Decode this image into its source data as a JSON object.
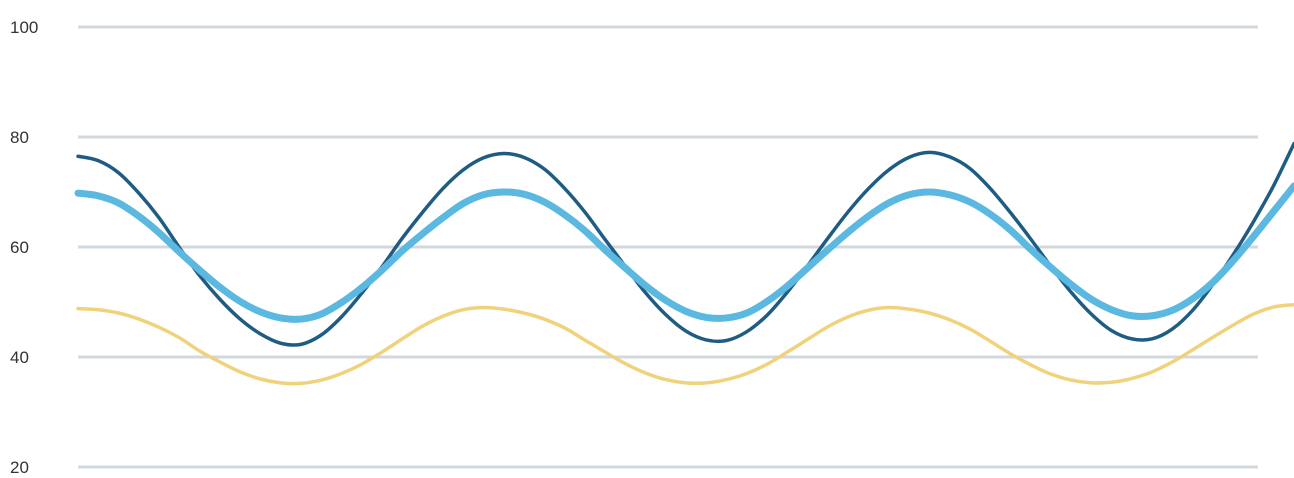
{
  "chart_data": {
    "type": "line",
    "title": "",
    "xlabel": "",
    "ylabel": "",
    "ylim": [
      20,
      100
    ],
    "xlim": [
      0,
      30
    ],
    "yticks": [
      20,
      40,
      60,
      80,
      100
    ],
    "grid": true,
    "legend": "none",
    "x": [
      0,
      0.5,
      1,
      1.5,
      2,
      2.5,
      3,
      3.5,
      4,
      4.5,
      5,
      5.5,
      6,
      6.5,
      7,
      7.5,
      8,
      8.5,
      9,
      9.5,
      10,
      10.5,
      11,
      11.5,
      12,
      12.5,
      13,
      13.5,
      14,
      14.5,
      15,
      15.5,
      16,
      16.5,
      17,
      17.5,
      18,
      18.5,
      19,
      19.5,
      20,
      20.5,
      21,
      21.5,
      22,
      22.5,
      23,
      23.5,
      24,
      24.5,
      25,
      25.5,
      26,
      26.5,
      27,
      27.5,
      28,
      28.5,
      29,
      29.5,
      30
    ],
    "series": [
      {
        "color": "#1f5c84",
        "values": [
          76.5,
          75.7,
          73.5,
          69.8,
          65.3,
          59.9,
          54.8,
          50.5,
          46.9,
          44.2,
          42.5,
          42.3,
          44,
          47.3,
          51.6,
          56.4,
          61.6,
          66.3,
          70.6,
          74,
          76.2,
          77,
          76.3,
          74.2,
          70.7,
          66.4,
          61.4,
          56.5,
          51.7,
          47.7,
          44.7,
          43.1,
          43,
          44.6,
          47.6,
          51.8,
          56.6,
          61.6,
          66.4,
          70.6,
          74,
          76.3,
          77.2,
          76.4,
          74.3,
          70.7,
          66.3,
          61.5,
          56.5,
          51.8,
          47.8,
          44.8,
          43.3,
          43.3,
          45.1,
          48.5,
          53.2,
          58.6,
          64.6,
          71.2,
          78.8
        ]
      },
      {
        "color": "#5bb8e0",
        "values": [
          69.8,
          69.3,
          68,
          65.6,
          62.6,
          59.1,
          55.8,
          52.7,
          50.1,
          48.2,
          47.1,
          46.9,
          47.8,
          49.9,
          52.6,
          55.8,
          59.3,
          62.4,
          65.3,
          67.9,
          69.5,
          70,
          69.6,
          68.2,
          65.9,
          63,
          59.5,
          56.2,
          53,
          50.3,
          48.3,
          47.2,
          47.1,
          48,
          50.1,
          52.9,
          56.2,
          59.5,
          62.7,
          65.6,
          68,
          69.5,
          70,
          69.5,
          68.2,
          66,
          63.1,
          59.6,
          56.3,
          53.2,
          50.5,
          48.6,
          47.5,
          47.5,
          48.5,
          50.6,
          53.6,
          57.5,
          61.9,
          66.5,
          71.1
        ]
      },
      {
        "color": "#f1d27c",
        "values": [
          48.8,
          48.6,
          48,
          46.9,
          45.4,
          43.5,
          41.1,
          39.1,
          37.3,
          36,
          35.3,
          35.2,
          35.8,
          37,
          38.7,
          40.9,
          43.3,
          45.6,
          47.4,
          48.6,
          49,
          48.7,
          48,
          46.9,
          45.3,
          43.1,
          40.9,
          38.8,
          37.1,
          35.9,
          35.3,
          35.3,
          35.9,
          37,
          38.7,
          40.9,
          43.2,
          45.5,
          47.3,
          48.5,
          49,
          48.7,
          48,
          46.8,
          45.1,
          42.9,
          40.6,
          38.6,
          36.9,
          35.8,
          35.3,
          35.4,
          36.1,
          37.3,
          39.1,
          41.3,
          43.6,
          45.8,
          47.8,
          49.1,
          49.5
        ]
      }
    ]
  }
}
